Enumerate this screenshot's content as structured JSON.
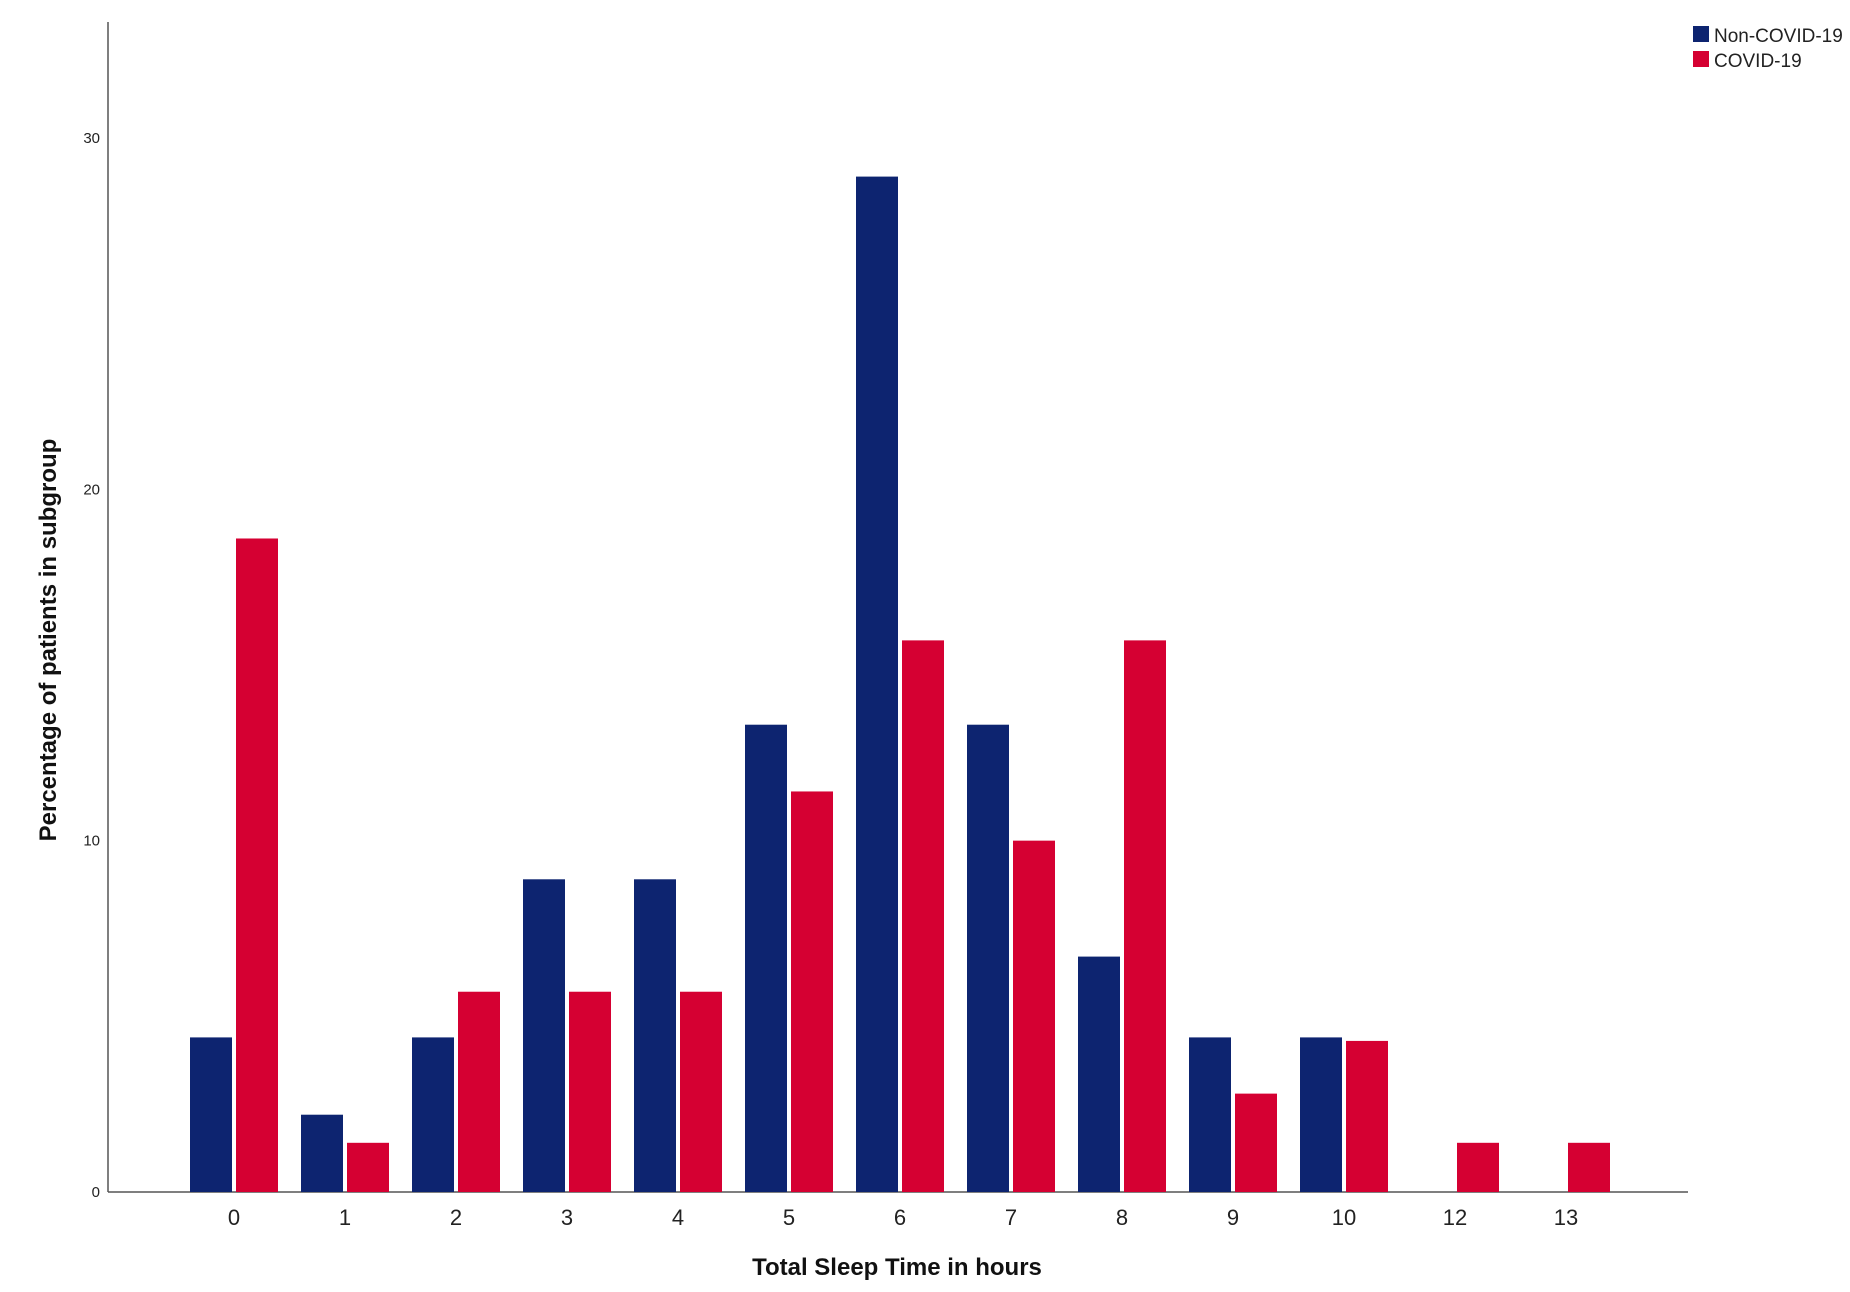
{
  "chart_data": {
    "type": "bar",
    "xlabel": "Total Sleep Time in hours",
    "ylabel": "Percentage of patients in subgroup",
    "categories": [
      "0",
      "1",
      "2",
      "3",
      "4",
      "5",
      "6",
      "7",
      "8",
      "9",
      "10",
      "12",
      "13"
    ],
    "yticks": [
      0,
      10,
      20,
      30
    ],
    "ylim": [
      0,
      33.3
    ],
    "grid": false,
    "legend_position": "top-right",
    "series": [
      {
        "name": "Non-COVID-19",
        "color": "#0d2470",
        "values": [
          4.4,
          2.2,
          4.4,
          8.9,
          8.9,
          13.3,
          28.9,
          13.3,
          6.7,
          4.4,
          4.4,
          0,
          0
        ]
      },
      {
        "name": "COVID-19",
        "color": "#d50032",
        "values": [
          18.6,
          1.4,
          5.7,
          5.7,
          5.7,
          11.4,
          15.7,
          10.0,
          15.7,
          2.8,
          4.3,
          1.4,
          1.4
        ]
      }
    ]
  }
}
